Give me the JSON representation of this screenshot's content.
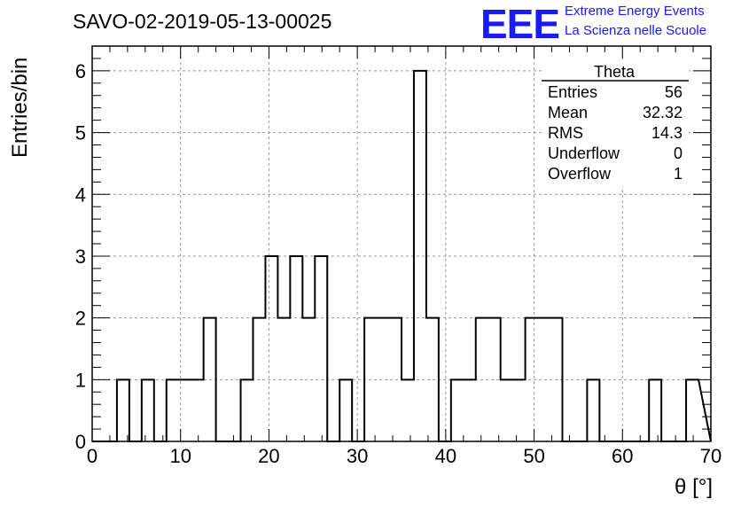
{
  "header": {
    "run_title": "SAVO-02-2019-05-13-00025",
    "logo": "EEE",
    "org_line1": "Extreme Energy Events",
    "org_line2": "La Scienza nelle Scuole",
    "brand_color": "#1a1aff"
  },
  "stats_box": {
    "title": "Theta",
    "rows": [
      {
        "label": "Entries",
        "value": "56"
      },
      {
        "label": "Mean",
        "value": "32.32"
      },
      {
        "label": "RMS",
        "value": "14.3"
      },
      {
        "label": "Underflow",
        "value": "0"
      },
      {
        "label": "Overflow",
        "value": "1"
      }
    ]
  },
  "chart_data": {
    "type": "bar",
    "subtype": "step-histogram",
    "xlabel": "θ [°]",
    "ylabel": "Entries/bin",
    "xlim": [
      0,
      70
    ],
    "ylim": [
      0,
      6.4
    ],
    "grid": true,
    "bin_width": 1.4,
    "x_ticks": [
      0,
      10,
      20,
      30,
      40,
      50,
      60,
      70
    ],
    "y_ticks": [
      0,
      1,
      2,
      3,
      4,
      5,
      6
    ],
    "values": [
      0,
      0,
      1,
      0,
      1,
      0,
      1,
      1,
      1,
      2,
      0,
      0,
      1,
      2,
      3,
      2,
      3,
      2,
      3,
      0,
      1,
      0,
      2,
      2,
      2,
      1,
      6,
      2,
      0,
      1,
      1,
      2,
      2,
      1,
      1,
      2,
      2,
      2,
      0,
      0,
      1,
      0,
      0,
      0,
      0,
      1,
      0,
      0,
      1
    ]
  }
}
